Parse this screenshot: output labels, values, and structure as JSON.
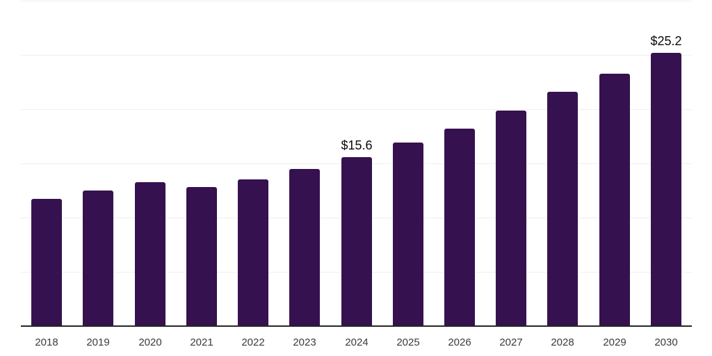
{
  "chart_data": {
    "type": "bar",
    "categories": [
      "2018",
      "2019",
      "2020",
      "2021",
      "2022",
      "2023",
      "2024",
      "2025",
      "2026",
      "2027",
      "2028",
      "2029",
      "2030"
    ],
    "values": [
      11.7,
      12.5,
      13.3,
      12.8,
      13.5,
      14.5,
      15.6,
      16.9,
      18.2,
      19.9,
      21.6,
      23.3,
      25.2
    ],
    "data_labels": [
      {
        "category": "2024",
        "text": "$15.6"
      },
      {
        "category": "2030",
        "text": "$25.2"
      }
    ],
    "ylim": [
      0,
      30
    ],
    "ytick_interval": 5,
    "grid": true,
    "y_axis_labels_visible": false,
    "legend": false,
    "colors": {
      "bar": "#36114f",
      "gridline": "#efefef",
      "axis_line": "#262626",
      "tick_label": "#3a3a3a",
      "data_label": "#0a0a0a",
      "background": "#ffffff"
    }
  }
}
